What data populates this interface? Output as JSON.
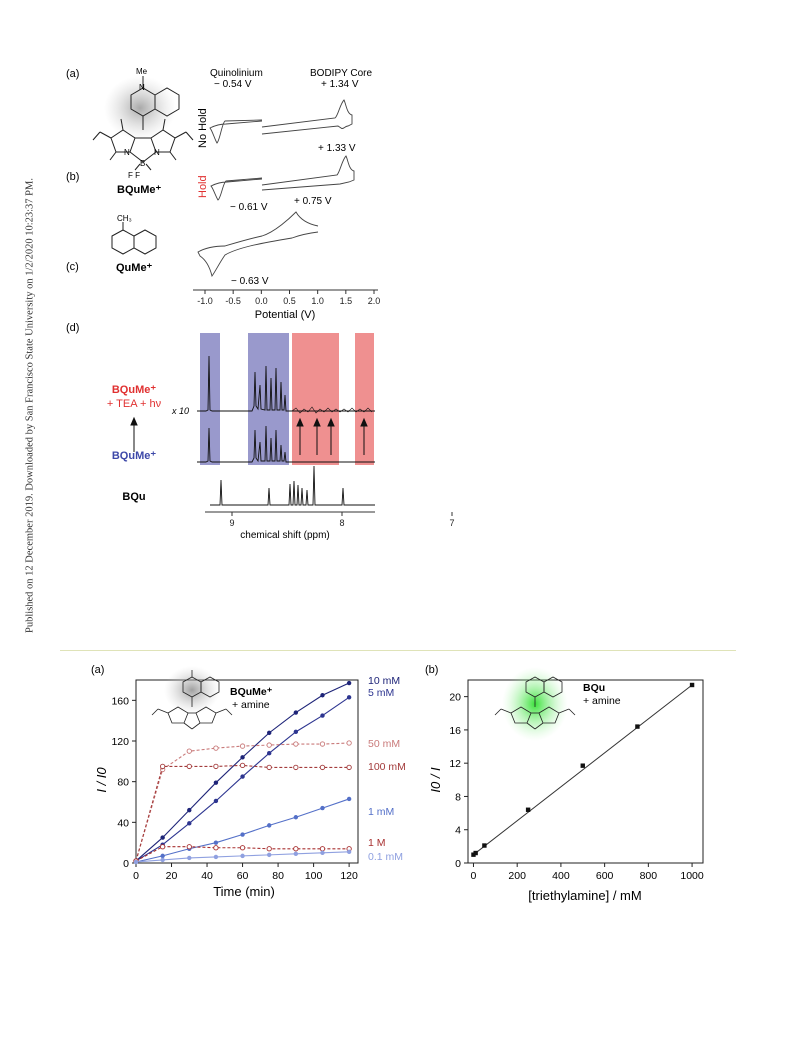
{
  "sidebar": {
    "text": "Published on 12 December 2019. Downloaded by San Francisco State University on 1/2/2020 10:23:37 PM."
  },
  "top_figure": {
    "label_a": "(a)",
    "label_b": "(b)",
    "label_c": "(c)",
    "label_d": "(d)",
    "bquime_name": "BQuMe⁺",
    "qume_name": "QuMe⁺",
    "me_label": "Me",
    "ch3_label": "CH₃",
    "cv": {
      "quinolinium_label": "Quinolinium",
      "bodipy_label": "BODIPY Core",
      "v_a_left": "− 0.54 V",
      "v_a_right": "+ 1.34 V",
      "no_hold": "No Hold",
      "hold": "Hold",
      "v_b_right": "+ 1.33 V",
      "v_b_left": "− 0.61 V",
      "v_c_right": "+ 0.75 V",
      "v_c_left": "− 0.63 V",
      "xticks": [
        "-1.0",
        "-0.5",
        "0.0",
        "0.5",
        "1.0",
        "1.5",
        "2.0"
      ],
      "xlabel": "Potential (V)"
    },
    "nmr": {
      "label_red_1": "BQuMe⁺",
      "label_red_2": "+ TEA + hν",
      "label_blue": "BQuMe⁺",
      "label_bqu": "BQu",
      "x10": "x 10",
      "xticks": [
        "9",
        "8",
        "7"
      ],
      "xlabel": "chemical shift (ppm)"
    }
  },
  "bottom_figure": {
    "label_a": "(a)",
    "label_b": "(b)",
    "bquime_label": "BQuMe⁺",
    "amine_label": "+ amine",
    "bqu_label": "BQu",
    "amine_label_b": "+ amine"
  },
  "chart_data": [
    {
      "type": "line",
      "xlabel": "Time (min)",
      "ylabel": "I / I0",
      "xlim": [
        0,
        125
      ],
      "ylim": [
        0,
        180
      ],
      "xticks": [
        "0",
        "20",
        "40",
        "60",
        "80",
        "100",
        "120"
      ],
      "yticks": [
        "0",
        "40",
        "80",
        "120",
        "160"
      ],
      "series": [
        {
          "name": "10 mM",
          "color": "#1e2478",
          "style": "solid",
          "marker": "filled",
          "x": [
            0,
            15,
            30,
            45,
            60,
            75,
            90,
            105,
            120
          ],
          "y": [
            2,
            25,
            52,
            79,
            104,
            128,
            148,
            165,
            177
          ]
        },
        {
          "name": "5 mM",
          "color": "#2d3590",
          "style": "solid",
          "marker": "filled",
          "x": [
            0,
            15,
            30,
            45,
            60,
            75,
            90,
            105,
            120
          ],
          "y": [
            2,
            18,
            39,
            61,
            85,
            108,
            129,
            145,
            163
          ]
        },
        {
          "name": "50 mM",
          "color": "#c97a7a",
          "style": "dashed",
          "marker": "open",
          "x": [
            0,
            15,
            30,
            45,
            60,
            75,
            90,
            105,
            120
          ],
          "y": [
            2,
            92,
            110,
            113,
            115,
            116,
            117,
            117,
            118
          ]
        },
        {
          "name": "100 mM",
          "color": "#a33c3c",
          "style": "dashed",
          "marker": "open",
          "x": [
            0,
            15,
            30,
            45,
            60,
            75,
            90,
            105,
            120
          ],
          "y": [
            2,
            95,
            95,
            95,
            96,
            94,
            94,
            94,
            94
          ]
        },
        {
          "name": "1 mM",
          "color": "#5470c8",
          "style": "solid",
          "marker": "filled",
          "x": [
            0,
            15,
            30,
            45,
            60,
            75,
            90,
            105,
            120
          ],
          "y": [
            1,
            7,
            14,
            20,
            28,
            37,
            45,
            54,
            63
          ]
        },
        {
          "name": "1 M",
          "color": "#a83030",
          "style": "dashed",
          "marker": "open",
          "x": [
            0,
            15,
            30,
            45,
            60,
            75,
            90,
            105,
            120
          ],
          "y": [
            2,
            16,
            16,
            15,
            15,
            14,
            14,
            14,
            14
          ]
        },
        {
          "name": "0.1 mM",
          "color": "#8fa0e0",
          "style": "solid",
          "marker": "filled",
          "x": [
            0,
            15,
            30,
            45,
            60,
            75,
            90,
            105,
            120
          ],
          "y": [
            1,
            3,
            5,
            6,
            7,
            8,
            9,
            10,
            11
          ]
        }
      ]
    },
    {
      "type": "scatter",
      "xlabel": "[triethylamine] / mM",
      "ylabel": "I0 / I",
      "xlim": [
        -25,
        1050
      ],
      "ylim": [
        0,
        22
      ],
      "xticks": [
        "0",
        "200",
        "400",
        "600",
        "800",
        "1000"
      ],
      "yticks": [
        "0",
        "4",
        "8",
        "12",
        "16",
        "20"
      ],
      "series": [
        {
          "name": "",
          "color": "#111111",
          "x": [
            0,
            10,
            50,
            250,
            500,
            750,
            1000
          ],
          "y": [
            1.0,
            1.2,
            2.1,
            6.4,
            11.7,
            16.4,
            21.4
          ]
        }
      ],
      "fit": {
        "x": [
          0,
          1000
        ],
        "y": [
          1.0,
          21.4
        ]
      }
    }
  ]
}
